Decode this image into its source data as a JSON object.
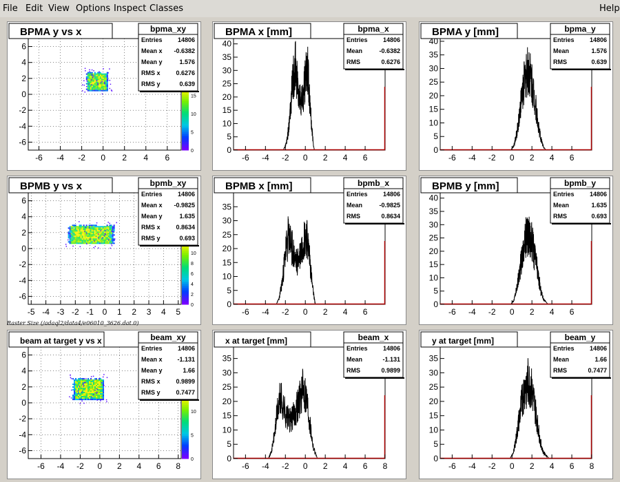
{
  "menu": {
    "file": "File",
    "edit": "Edit",
    "view": "View",
    "options": "Options",
    "inspect": "Inspect",
    "classes": "Classes",
    "help": "Help"
  },
  "caption": "Raster Size (/adaql2/data4/e06010_3626.dat.0)",
  "stat_labels": {
    "entries": "Entries",
    "mean": "Mean",
    "mean_x": "Mean x",
    "mean_y": "Mean y",
    "rms": "RMS",
    "rms_x": "RMS x",
    "rms_y": "RMS y"
  },
  "chart_data": [
    {
      "type": "heatmap",
      "title": "BPMA y vs x",
      "stat_name": "bpma_xy",
      "stats": {
        "entries": "14806",
        "mean_x": "-0.6382",
        "mean_y": "1.576",
        "rms_x": "0.6276",
        "rms_y": "0.639"
      },
      "xlim": [
        -7,
        7.3
      ],
      "ylim": [
        -7,
        7
      ],
      "xticks": [
        -6,
        -4,
        -2,
        0,
        2,
        4,
        6
      ],
      "yticks": [
        -6,
        -4,
        -2,
        0,
        2,
        4,
        6
      ],
      "grid": true,
      "blob": {
        "x": [
          -1.6,
          0.4
        ],
        "y": [
          0.5,
          2.8
        ]
      },
      "zticks": [
        0,
        5,
        10,
        15
      ],
      "zmax": 17
    },
    {
      "type": "bar",
      "title": "BPMA x [mm]",
      "stat_name": "bpma_x",
      "stats": {
        "entries": "14806",
        "mean": "-0.6382",
        "rms": "0.6276"
      },
      "xlim": [
        -7.2,
        8
      ],
      "ylim": [
        0,
        42
      ],
      "xticks": [
        -6,
        -4,
        -2,
        0,
        2,
        4,
        6
      ],
      "yticks": [
        0,
        5,
        10,
        15,
        20,
        25,
        30,
        35,
        40
      ],
      "profile": {
        "start": -2.2,
        "end": 0.9,
        "shape": [
          [
            -2.2,
            0
          ],
          [
            -1.9,
            3
          ],
          [
            -1.6,
            12
          ],
          [
            -1.4,
            25
          ],
          [
            -1.2,
            33
          ],
          [
            -1.0,
            38
          ],
          [
            -0.8,
            30
          ],
          [
            -0.6,
            24
          ],
          [
            -0.4,
            22
          ],
          [
            -0.2,
            25
          ],
          [
            0,
            33
          ],
          [
            0.2,
            38
          ],
          [
            0.4,
            28
          ],
          [
            0.6,
            12
          ],
          [
            0.8,
            3
          ],
          [
            0.9,
            0
          ]
        ]
      }
    },
    {
      "type": "bar",
      "title": "BPMA y [mm]",
      "stat_name": "bpma_y",
      "stats": {
        "entries": "14806",
        "mean": "1.576",
        "rms": "0.639"
      },
      "xlim": [
        -7.2,
        8
      ],
      "ylim": [
        0,
        41
      ],
      "xticks": [
        -6,
        -4,
        -2,
        0,
        2,
        4,
        6
      ],
      "yticks": [
        0,
        5,
        10,
        15,
        20,
        25,
        30,
        35,
        40
      ],
      "profile": {
        "start": -0.1,
        "end": 3.4,
        "shape": [
          [
            -0.1,
            0
          ],
          [
            0.2,
            2
          ],
          [
            0.5,
            8
          ],
          [
            0.8,
            18
          ],
          [
            1.1,
            28
          ],
          [
            1.4,
            34
          ],
          [
            1.7,
            36
          ],
          [
            2.0,
            30
          ],
          [
            2.3,
            22
          ],
          [
            2.6,
            12
          ],
          [
            2.9,
            5
          ],
          [
            3.2,
            1
          ],
          [
            3.4,
            0
          ]
        ]
      }
    },
    {
      "type": "heatmap",
      "title": "BPMB y vs x",
      "stat_name": "bpmb_xy",
      "stats": {
        "entries": "14806",
        "mean_x": "-0.9825",
        "mean_y": "1.635",
        "rms_x": "0.8634",
        "rms_y": "0.693"
      },
      "xlim": [
        -5.2,
        5.2
      ],
      "ylim": [
        -7,
        7
      ],
      "xticks": [
        -5,
        -4,
        -3,
        -2,
        -1,
        0,
        1,
        2,
        3,
        4,
        5
      ],
      "yticks": [
        -6,
        -4,
        -2,
        0,
        2,
        4,
        6
      ],
      "grid": true,
      "blob": {
        "x": [
          -2.5,
          0.6
        ],
        "y": [
          0.6,
          3.0
        ]
      },
      "zticks": [
        0,
        2,
        4,
        6,
        8,
        10
      ],
      "zmax": 12
    },
    {
      "type": "bar",
      "title": "BPMB x [mm]",
      "stat_name": "bpmb_x",
      "stats": {
        "entries": "14806",
        "mean": "-0.9825",
        "rms": "0.8634"
      },
      "xlim": [
        -7.2,
        8
      ],
      "ylim": [
        0,
        40
      ],
      "xticks": [
        -6,
        -4,
        -2,
        0,
        2,
        4,
        6
      ],
      "yticks": [
        0,
        5,
        10,
        15,
        20,
        25,
        30,
        35
      ],
      "profile": {
        "start": -2.9,
        "end": 1.0,
        "shape": [
          [
            -2.9,
            0
          ],
          [
            -2.6,
            3
          ],
          [
            -2.3,
            10
          ],
          [
            -2.0,
            22
          ],
          [
            -1.7,
            30
          ],
          [
            -1.4,
            26
          ],
          [
            -1.1,
            20
          ],
          [
            -0.8,
            18
          ],
          [
            -0.5,
            22
          ],
          [
            -0.2,
            28
          ],
          [
            0.1,
            30
          ],
          [
            0.4,
            22
          ],
          [
            0.7,
            8
          ],
          [
            1.0,
            0
          ]
        ]
      }
    },
    {
      "type": "bar",
      "title": "BPMB y [mm]",
      "stat_name": "bpmb_y",
      "stats": {
        "entries": "14806",
        "mean": "1.635",
        "rms": "0.693"
      },
      "xlim": [
        -7.2,
        8
      ],
      "ylim": [
        0,
        42
      ],
      "xticks": [
        -6,
        -4,
        -2,
        0,
        2,
        4,
        6
      ],
      "yticks": [
        0,
        5,
        10,
        15,
        20,
        25,
        30,
        35,
        40
      ],
      "profile": {
        "start": -0.1,
        "end": 3.6,
        "shape": [
          [
            -0.1,
            0
          ],
          [
            0.2,
            2
          ],
          [
            0.5,
            8
          ],
          [
            0.8,
            16
          ],
          [
            1.1,
            24
          ],
          [
            1.4,
            30
          ],
          [
            1.7,
            32
          ],
          [
            2.0,
            28
          ],
          [
            2.3,
            22
          ],
          [
            2.6,
            14
          ],
          [
            2.9,
            6
          ],
          [
            3.2,
            2
          ],
          [
            3.6,
            0
          ]
        ]
      }
    },
    {
      "type": "heatmap",
      "title": "beam at target y vs x",
      "stat_name": "beam_xy",
      "stats": {
        "entries": "14806",
        "mean_x": "-1.131",
        "mean_y": "1.66",
        "rms_x": "0.9899",
        "rms_y": "0.7477"
      },
      "xlim": [
        -7.3,
        8.3
      ],
      "ylim": [
        -7,
        7
      ],
      "xticks": [
        -6,
        -4,
        -2,
        0,
        2,
        4,
        6,
        8
      ],
      "yticks": [
        -6,
        -4,
        -2,
        0,
        2,
        4,
        6
      ],
      "grid": true,
      "blob": {
        "x": [
          -2.8,
          0.4
        ],
        "y": [
          0.4,
          3.1
        ]
      },
      "zticks": [
        0,
        5,
        10
      ],
      "zmax": 13
    },
    {
      "type": "bar",
      "title": "x at target [mm]",
      "stat_name": "beam_x",
      "stats": {
        "entries": "14806",
        "mean": "-1.131",
        "rms": "0.9899"
      },
      "xlim": [
        -7.2,
        8
      ],
      "ylim": [
        0,
        39
      ],
      "xticks": [
        -6,
        -4,
        -2,
        0,
        2,
        4,
        6,
        8
      ],
      "yticks": [
        0,
        5,
        10,
        15,
        20,
        25,
        30,
        35
      ],
      "profile": {
        "start": -3.7,
        "end": 1.2,
        "shape": [
          [
            -3.7,
            0
          ],
          [
            -3.4,
            3
          ],
          [
            -3.1,
            10
          ],
          [
            -2.8,
            20
          ],
          [
            -2.5,
            26
          ],
          [
            -2.2,
            22
          ],
          [
            -1.9,
            18
          ],
          [
            -1.6,
            16
          ],
          [
            -1.3,
            17
          ],
          [
            -1.0,
            20
          ],
          [
            -0.7,
            24
          ],
          [
            -0.4,
            28
          ],
          [
            -0.1,
            30
          ],
          [
            0.2,
            24
          ],
          [
            0.5,
            14
          ],
          [
            0.8,
            5
          ],
          [
            1.2,
            0
          ]
        ]
      }
    },
    {
      "type": "bar",
      "title": "y at target [mm]",
      "stat_name": "beam_y",
      "stats": {
        "entries": "14806",
        "mean": "1.66",
        "rms": "0.7477"
      },
      "xlim": [
        -7.2,
        8
      ],
      "ylim": [
        0,
        39
      ],
      "xticks": [
        -6,
        -4,
        -2,
        0,
        2,
        4,
        6,
        8
      ],
      "yticks": [
        0,
        5,
        10,
        15,
        20,
        25,
        30,
        35
      ],
      "profile": {
        "start": -0.2,
        "end": 3.7,
        "shape": [
          [
            -0.2,
            0
          ],
          [
            0.1,
            2
          ],
          [
            0.4,
            8
          ],
          [
            0.7,
            16
          ],
          [
            1.0,
            24
          ],
          [
            1.3,
            30
          ],
          [
            1.6,
            32
          ],
          [
            1.9,
            30
          ],
          [
            2.2,
            24
          ],
          [
            2.5,
            16
          ],
          [
            2.8,
            8
          ],
          [
            3.1,
            3
          ],
          [
            3.7,
            0
          ]
        ]
      }
    }
  ]
}
